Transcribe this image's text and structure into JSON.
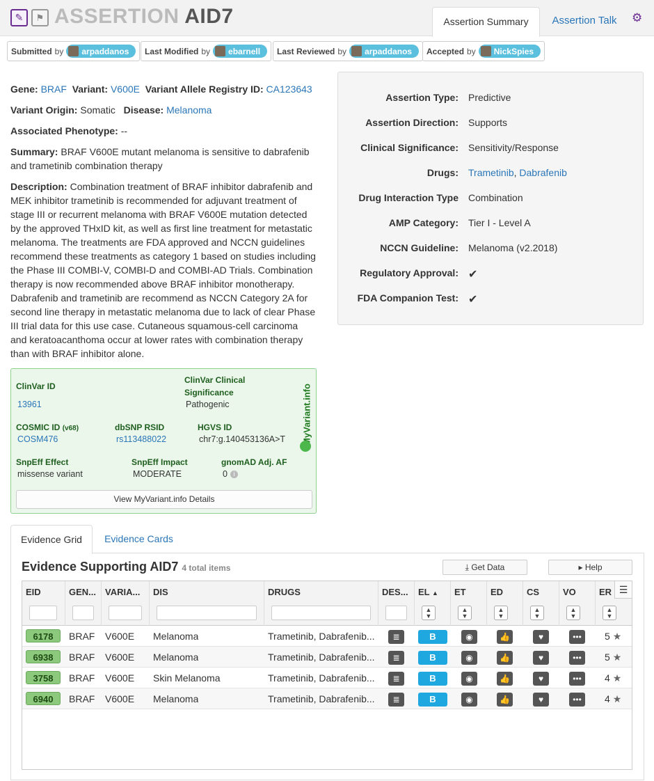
{
  "header": {
    "title_prefix": "ASSERTION",
    "title_id": "AID7",
    "tabs": [
      {
        "label": "Assertion Summary"
      },
      {
        "label": "Assertion Talk"
      }
    ],
    "edit_icon": "pencil-icon",
    "flag_icon": "flag-icon",
    "settings_icon": "gear-icon"
  },
  "activity": [
    {
      "label": "Submitted",
      "by": "by",
      "user": "arpaddanos"
    },
    {
      "label": "Last Modified",
      "by": "by",
      "user": "ebarnell"
    },
    {
      "label": "Last Reviewed",
      "by": "by",
      "user": "arpaddanos"
    },
    {
      "label": "Accepted",
      "by": "by",
      "user": "NickSpies"
    }
  ],
  "details": {
    "gene_label": "Gene:",
    "gene": "BRAF",
    "variant_label": "Variant:",
    "variant": "V600E",
    "registry_label": "Variant Allele Registry ID:",
    "registry": "CA123643",
    "origin_label": "Variant Origin:",
    "origin": "Somatic",
    "disease_label": "Disease:",
    "disease": "Melanoma",
    "phenotype_label": "Associated Phenotype:",
    "phenotype": "--",
    "summary_label": "Summary:",
    "summary": "BRAF V600E mutant melanoma is sensitive to dabrafenib and trametinib combination therapy",
    "description_label": "Description:",
    "description": "Combination treatment of BRAF inhibitor dabrafenib and MEK inhibitor trametinib is recommended for adjuvant treatment of stage III or recurrent melanoma with BRAF V600E mutation detected by the approved THxID kit, as well as first line treatment for metastatic melanoma. The treatments are FDA approved and NCCN guidelines recommend these treatments as category 1 based on studies including the Phase III COMBI-V, COMBI-D and COMBI-AD Trials. Combination therapy is now recommended above BRAF inhibitor monotherapy. Dabrafenib and trametinib are recommend as NCCN Category 2A for second line therapy in metastatic melanoma due to lack of clear Phase III trial data for this use case. Cutaneous squamous-cell carcinoma and keratoacanthoma occur at lower rates with combination therapy than with BRAF inhibitor alone."
  },
  "panel": {
    "assertion_type_label": "Assertion Type:",
    "assertion_type": "Predictive",
    "direction_label": "Assertion Direction:",
    "direction": "Supports",
    "clinical_label": "Clinical Significance:",
    "clinical": "Sensitivity/Response",
    "drugs_label": "Drugs:",
    "drug1": "Trametinib",
    "drug_sep": ",",
    "drug2": "Dabrafenib",
    "interaction_label": "Drug Interaction Type",
    "interaction": "Combination",
    "amp_label": "AMP Category:",
    "amp": "Tier I - Level A",
    "nccn_label": "NCCN Guideline:",
    "nccn": "Melanoma (v2.2018)",
    "regulatory_label": "Regulatory Approval:",
    "regulatory_icon": "checkmark-icon",
    "fda_label": "FDA Companion Test:",
    "fda_icon": "checkmark-icon",
    "check_color": "#2e8b2e"
  },
  "myvariant": {
    "clinvar_id_label": "ClinVar ID",
    "clinvar_id": "13961",
    "clinvar_sig_label": "ClinVar Clinical Significance",
    "clinvar_sig": "Pathogenic",
    "cosmic_label": "COSMIC ID",
    "cosmic_version": "(v68)",
    "cosmic": "COSM476",
    "dbsnp_label": "dbSNP RSID",
    "dbsnp": "rs113488022",
    "hgvs_label": "HGVS ID",
    "hgvs": "chr7:g.140453136A>T",
    "snpeff_effect_label": "SnpEff Effect",
    "snpeff_effect": "missense variant",
    "snpeff_impact_label": "SnpEff Impact",
    "snpeff_impact": "MODERATE",
    "gnomad_label": "gnomAD Adj. AF",
    "gnomad": "0",
    "brand": "MyVariant.info",
    "button": "View MyVariant.info Details"
  },
  "evidence": {
    "tabs": [
      {
        "label": "Evidence Grid"
      },
      {
        "label": "Evidence Cards"
      }
    ],
    "title": "Evidence Supporting AID7",
    "count": "4 total items",
    "get_data": "Get Data",
    "help": "Help",
    "columns": [
      "EID",
      "GEN...",
      "VARIA...",
      "DIS",
      "DRUGS",
      "DES...",
      "EL",
      "ET",
      "ED",
      "CS",
      "VO",
      "ER"
    ],
    "rows": [
      {
        "eid": "6178",
        "gene": "BRAF",
        "variant": "V600E",
        "disease": "Melanoma",
        "drugs": "Trametinib, Dabrafenib...",
        "level": "B",
        "rating": "5"
      },
      {
        "eid": "6938",
        "gene": "BRAF",
        "variant": "V600E",
        "disease": "Melanoma",
        "drugs": "Trametinib, Dabrafenib...",
        "level": "B",
        "rating": "5"
      },
      {
        "eid": "3758",
        "gene": "BRAF",
        "variant": "V600E",
        "disease": "Skin Melanoma",
        "drugs": "Trametinib, Dabrafenib...",
        "level": "B",
        "rating": "4"
      },
      {
        "eid": "6940",
        "gene": "BRAF",
        "variant": "V600E",
        "disease": "Melanoma",
        "drugs": "Trametinib, Dabrafenib...",
        "level": "B",
        "rating": "4"
      }
    ]
  }
}
